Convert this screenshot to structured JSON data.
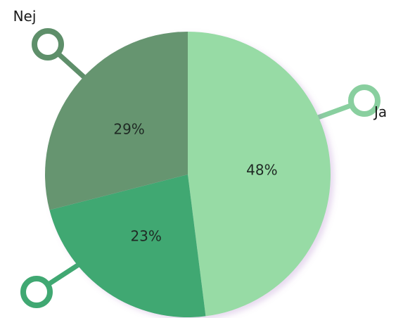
{
  "chart_data": {
    "type": "pie",
    "series": [
      {
        "name": "Ja",
        "value": 48,
        "label": "48%",
        "color": "#97dba5"
      },
      {
        "name": "",
        "value": 23,
        "label": "23%",
        "color": "#40a872"
      },
      {
        "name": "Nej",
        "value": 29,
        "label": "29%",
        "color": "#66956f"
      }
    ],
    "legend": [
      {
        "text": "Ja",
        "color": "#89cf9f"
      },
      {
        "text": "",
        "color": "#40a872"
      },
      {
        "text": "Nej",
        "color": "#5e8f6a"
      }
    ]
  }
}
